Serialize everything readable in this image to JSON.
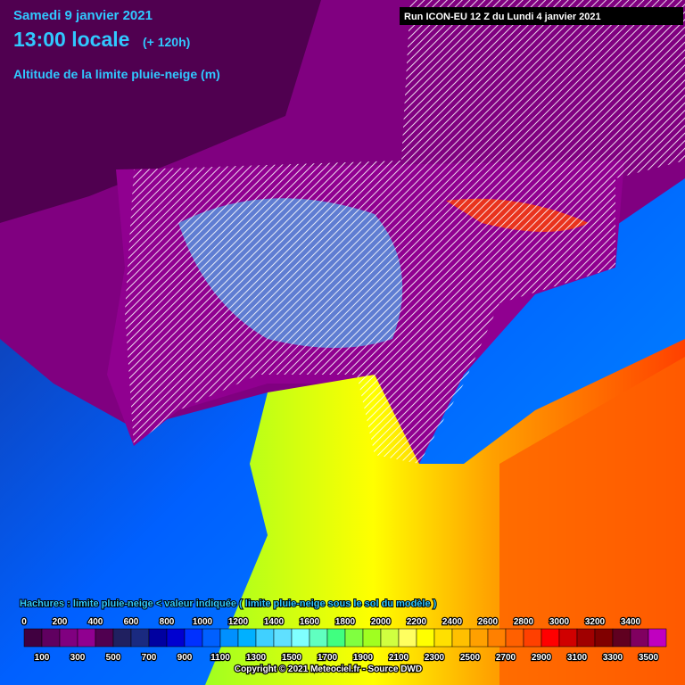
{
  "header": {
    "date": "Samedi 9 janvier 2021",
    "time": "13:00 locale",
    "lead": "(+ 120h)",
    "title": "Altitude de la limite pluie-neige (m)",
    "run": "Run ICON-EU 12 Z du Lundi 4 janvier 2021"
  },
  "legend": {
    "note": "Hachures : limite pluie-neige < valeur indiquée ( limite pluie-neige sous le sol du modèle )",
    "top_labels": [
      0,
      200,
      400,
      600,
      800,
      1000,
      1200,
      1400,
      1600,
      1800,
      2000,
      2200,
      2400,
      2600,
      2800,
      3000,
      3200,
      3400
    ],
    "bottom_labels": [
      100,
      300,
      500,
      700,
      900,
      1100,
      1300,
      1500,
      1700,
      1900,
      2100,
      2300,
      2500,
      2700,
      2900,
      3100,
      3300,
      3500
    ],
    "colors": [
      "#400040",
      "#600060",
      "#800080",
      "#900090",
      "#500050",
      "#202060",
      "#1a2a80",
      "#0000a0",
      "#0000d0",
      "#0030ff",
      "#0060ff",
      "#0090ff",
      "#00b0ff",
      "#40d0ff",
      "#60e0ff",
      "#80ffff",
      "#60ffc0",
      "#40ff80",
      "#80ff40",
      "#a0ff20",
      "#d0ff40",
      "#ffff60",
      "#ffff00",
      "#ffe000",
      "#ffc000",
      "#ffa000",
      "#ff8000",
      "#ff6000",
      "#ff4000",
      "#ff0000",
      "#d00000",
      "#a00000",
      "#800000",
      "#600020",
      "#800060",
      "#c000c0"
    ]
  },
  "footer": {
    "copyright": "Copyright © 2021 Meteociel.fr - Source DWD"
  }
}
